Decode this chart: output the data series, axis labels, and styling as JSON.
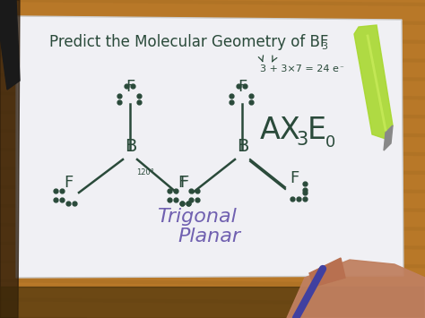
{
  "bg_wood_color": "#8B6914",
  "bg_wood_light": "#C8A050",
  "paper_color": "#f0f0f4",
  "paper_edge": "#cccccc",
  "text_color": "#2a4a3a",
  "purple_color": "#7060b0",
  "title": "Predict the Molecular Geometry of BF",
  "title_sub": "3",
  "calc": "3 + 3×7 = 24 e",
  "ax3e_label": "AX",
  "trigonal": "Trigonal",
  "planar": "Planar",
  "pen_green": "#a0d020",
  "pen_gray": "#909090",
  "skin_color": "#c8956a"
}
